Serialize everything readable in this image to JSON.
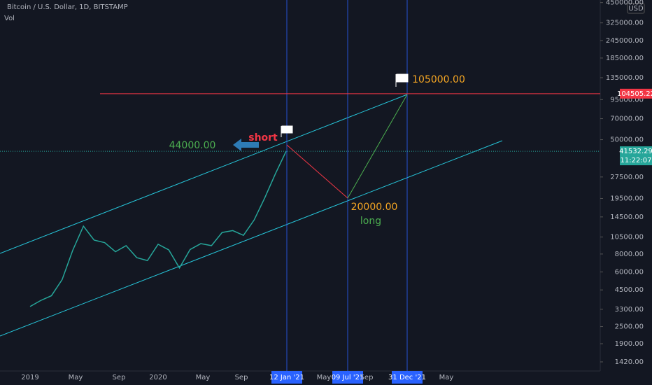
{
  "chart_data": {
    "type": "line",
    "title": "Bitcoin / U.S. Dollar, 1D, BITSTAMP",
    "subtitle": "Vol",
    "currency": "USD",
    "log_scale": true,
    "color": "#26a69a",
    "x": [
      "2019-01",
      "2019-02",
      "2019-03",
      "2019-04",
      "2019-05",
      "2019-06",
      "2019-07",
      "2019-08",
      "2019-09",
      "2019-10",
      "2019-11",
      "2019-12",
      "2020-01",
      "2020-02",
      "2020-03",
      "2020-04",
      "2020-05",
      "2020-06",
      "2020-07",
      "2020-08",
      "2020-09",
      "2020-10",
      "2020-11",
      "2020-12",
      "2021-01"
    ],
    "values": [
      3450,
      3800,
      4100,
      5300,
      8500,
      12500,
      10000,
      9600,
      8300,
      9150,
      7550,
      7200,
      9350,
      8550,
      6400,
      8600,
      9450,
      9150,
      11300,
      11650,
      10800,
      13800,
      19700,
      29000,
      41532.29
    ],
    "ylim": [
      1227,
      469000
    ],
    "yticks": [
      {
        "value": 1420,
        "label": "1420.00"
      },
      {
        "value": 1900,
        "label": "1900.00"
      },
      {
        "value": 2500,
        "label": "2500.00"
      },
      {
        "value": 3300,
        "label": "3300.00"
      },
      {
        "value": 4500,
        "label": "4500.00"
      },
      {
        "value": 6000,
        "label": "6000.00"
      },
      {
        "value": 8000,
        "label": "8000.00"
      },
      {
        "value": 10500,
        "label": "10500.00"
      },
      {
        "value": 14500,
        "label": "14500.00"
      },
      {
        "value": 19500,
        "label": "19500.00"
      },
      {
        "value": 27500,
        "label": "27500.00"
      },
      {
        "value": 50000,
        "label": "50000.00"
      },
      {
        "value": 70000,
        "label": "70000.00"
      },
      {
        "value": 95000,
        "label": "95000.00"
      },
      {
        "value": 135000,
        "label": "135000.00"
      },
      {
        "value": 185000,
        "label": "185000.00"
      },
      {
        "value": 245000,
        "label": "245000.00"
      },
      {
        "value": 325000,
        "label": "325000.00"
      },
      {
        "value": 450000,
        "label": "450000.00"
      }
    ],
    "time_labels": [
      "2019",
      "May",
      "Sep",
      "2020",
      "May",
      "Sep",
      "12 Jan '21",
      "May",
      "09 Jul '21",
      "Sep",
      "31 Dec '21",
      "May"
    ],
    "target_line": {
      "value": 104505.22,
      "label": "104505.22"
    },
    "last_price": {
      "value": 41532.29,
      "label": "41532.29",
      "countdown": "11:22:07"
    },
    "annotations": {
      "short_level": "44000.00",
      "short": "short",
      "target": "105000.00",
      "dip": "20000.00",
      "long": "long"
    }
  }
}
